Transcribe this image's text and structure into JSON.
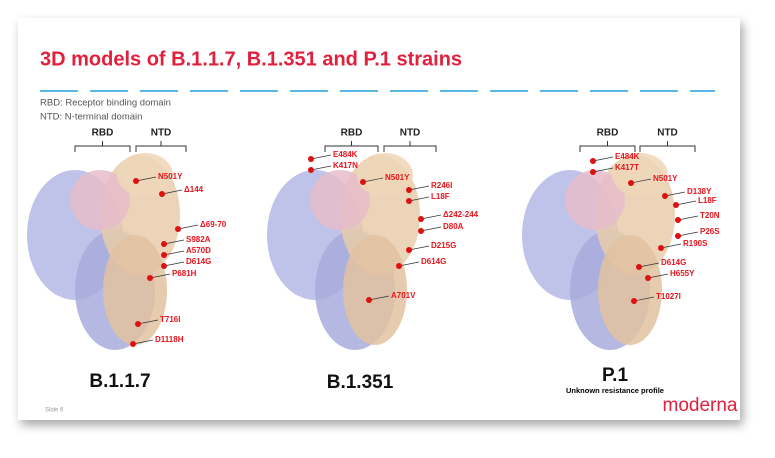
{
  "header": {
    "title": "3D models of B.1.1.7, B.1.351 and P.1 strains"
  },
  "legend": [
    "RBD: Receptor binding domain",
    "NTD: N-terminal domain"
  ],
  "models": [
    {
      "rbd": "RBD",
      "ntd": "NTD",
      "name": "B.1.1.7",
      "mutations": [
        "N501Y",
        "Δ144",
        "Δ69-70",
        "S982A",
        "A570D",
        "D614G",
        "P681H",
        "T716I",
        "D1118H"
      ]
    },
    {
      "rbd": "RBD",
      "ntd": "NTD",
      "name": "B.1.351",
      "mutations": [
        "E484K",
        "K417N",
        "N501Y",
        "R246I",
        "L18F",
        "Δ242-244",
        "D80A",
        "D215G",
        "D614G",
        "A701V"
      ]
    },
    {
      "rbd": "RBD",
      "ntd": "NTD",
      "name": "P.1",
      "note": "Unknown resistance profile",
      "mutations": [
        "E484K",
        "K417T",
        "N501Y",
        "D138Y",
        "L18F",
        "T20N",
        "P26S",
        "R190S",
        "D614G",
        "H655Y",
        "T1027I"
      ]
    }
  ],
  "footer": {
    "slide": "Slide 6",
    "logo": "moderna"
  }
}
